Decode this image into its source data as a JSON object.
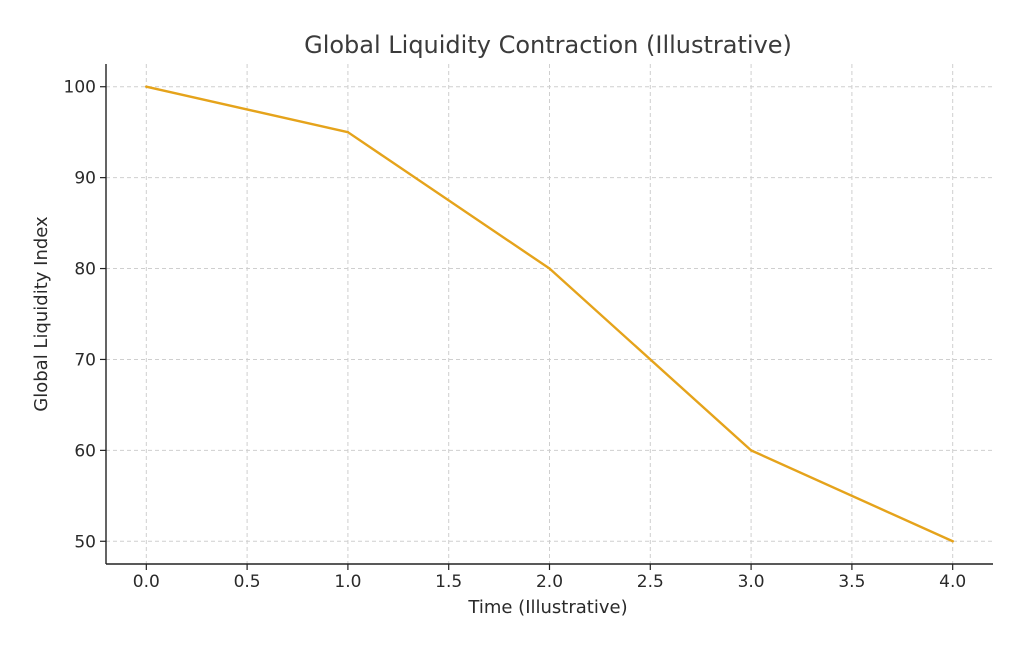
{
  "chart_data": {
    "type": "line",
    "title": "Global Liquidity Contraction (Illustrative)",
    "xlabel": "Time (Illustrative)",
    "ylabel": "Global Liquidity Index",
    "xlim": [
      -0.2,
      4.2
    ],
    "ylim": [
      47.5,
      102.5
    ],
    "xticks": [
      0.0,
      0.5,
      1.0,
      1.5,
      2.0,
      2.5,
      3.0,
      3.5,
      4.0
    ],
    "xtick_labels": [
      "0.0",
      "0.5",
      "1.0",
      "1.5",
      "2.0",
      "2.5",
      "3.0",
      "3.5",
      "4.0"
    ],
    "yticks": [
      50,
      60,
      70,
      80,
      90,
      100
    ],
    "ytick_labels": [
      "50",
      "60",
      "70",
      "80",
      "90",
      "100"
    ],
    "grid": true,
    "legend": "none",
    "series": [
      {
        "color": "#e5a31b",
        "x": [
          0,
          1,
          2,
          3,
          4
        ],
        "y": [
          100,
          95,
          80,
          60,
          50
        ]
      }
    ]
  }
}
